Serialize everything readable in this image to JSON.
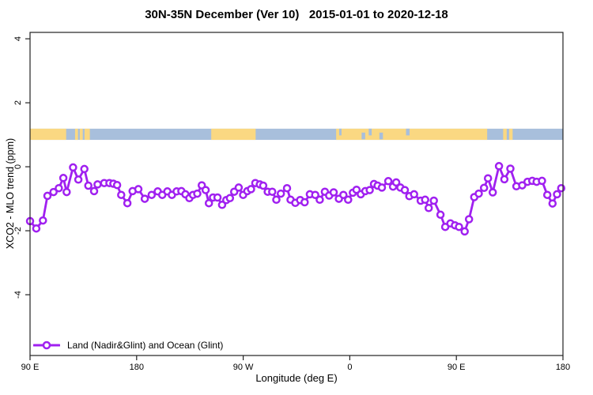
{
  "figure": {
    "title": "30N-35N December (Ver 10)   2015-01-01 to 2020-12-18",
    "x_axis_label": "Longitude (deg E)",
    "y_axis_label": "XCO2 - MLO trend (ppm)",
    "legend": {
      "label": "Land (Nadir&Glint) and Ocean (Glint)"
    }
  },
  "colors": {
    "series": "#A020F0",
    "marker_fill": "#FFFFFF",
    "land": "#FAD882",
    "ocean": "#A8BFDC",
    "axis": "#222222",
    "text": "#000000"
  },
  "chart_data": {
    "type": "line",
    "title": "30N-35N December (Ver 10)   2015-01-01 to 2020-12-18",
    "xlabel": "Longitude (deg E)",
    "ylabel": "XCO2 - MLO trend (ppm)",
    "xlim": [
      90,
      540
    ],
    "ylim": [
      -5.9,
      4.2
    ],
    "grid": false,
    "legend_position": "bottom-left-inside",
    "x_ticks": [
      {
        "value": 90,
        "label": "90 E"
      },
      {
        "value": 180,
        "label": "180"
      },
      {
        "value": 270,
        "label": "90 W"
      },
      {
        "value": 360,
        "label": "0"
      },
      {
        "value": 450,
        "label": "90 E"
      },
      {
        "value": 540,
        "label": "180"
      }
    ],
    "y_ticks": [
      {
        "value": -4,
        "label": "-4"
      },
      {
        "value": -2,
        "label": "-2"
      },
      {
        "value": 0,
        "label": "0"
      },
      {
        "value": 2,
        "label": "2"
      },
      {
        "value": 4,
        "label": "4"
      }
    ],
    "map_band": {
      "comment": "30N-35N world-map strip drawn across plot at ~+1 ppm; longitudes are continuous deg E from 90",
      "y_from": 0.84,
      "y_to": 1.19,
      "land_segments": [
        [
          90,
          120.5
        ],
        [
          128,
          130.5
        ],
        [
          132,
          134.5
        ],
        [
          136,
          140.5
        ],
        [
          243,
          280.5
        ],
        [
          348.5,
          476
        ],
        [
          489.5,
          492.5
        ],
        [
          494.5,
          497.5
        ]
      ],
      "ocean_specks": [
        [
          351,
          353
        ],
        [
          370,
          373
        ],
        [
          376,
          378.5
        ],
        [
          385,
          388
        ],
        [
          407.5,
          410.5
        ]
      ]
    },
    "series": [
      {
        "name": "Land (Nadir&Glint) and Ocean (Glint)",
        "color": "#A020F0",
        "marker": "open-circle",
        "x": [
          90,
          95.3,
          100.9,
          104.7,
          109.8,
          114.3,
          118.1,
          120.9,
          126.3,
          130.8,
          135.9,
          139.2,
          144.1,
          147,
          152.6,
          157,
          160.4,
          163.5,
          167,
          172.2,
          176.6,
          181.5,
          186.9,
          192.7,
          197.8,
          201.6,
          206,
          209.8,
          213.8,
          217.8,
          221.2,
          224.5,
          227.6,
          231.2,
          235,
          238.3,
          241,
          244.5,
          248.3,
          252.2,
          255.7,
          258.8,
          262.4,
          266.2,
          269.9,
          273.5,
          276.6,
          280.2,
          284,
          286.9,
          290.7,
          294.5,
          298,
          301.8,
          307,
          310,
          314,
          318.1,
          321.9,
          326.3,
          330.8,
          334.6,
          339,
          342.6,
          346.4,
          350.8,
          354.6,
          358.6,
          362.6,
          365.7,
          369.3,
          373.1,
          376.8,
          380.4,
          383.5,
          387.1,
          392.5,
          396.5,
          399.2,
          402.7,
          406.5,
          410.3,
          414.3,
          419.9,
          423.6,
          426.6,
          431,
          436.6,
          440.6,
          445,
          448.8,
          452.2,
          457,
          460.7,
          465.1,
          468.9,
          473.4,
          476.7,
          480.7,
          486,
          490.5,
          495.6,
          500.7,
          505.6,
          510.1,
          514.1,
          517.8,
          522.3,
          526.8,
          531.2,
          535,
          538.5
        ],
        "y": [
          -1.7,
          -1.93,
          -1.68,
          -0.91,
          -0.79,
          -0.67,
          -0.35,
          -0.79,
          -0.02,
          -0.4,
          -0.07,
          -0.59,
          -0.76,
          -0.55,
          -0.51,
          -0.51,
          -0.53,
          -0.57,
          -0.88,
          -1.14,
          -0.76,
          -0.7,
          -1.0,
          -0.88,
          -0.77,
          -0.88,
          -0.77,
          -0.88,
          -0.77,
          -0.76,
          -0.86,
          -0.98,
          -0.88,
          -0.84,
          -0.58,
          -0.73,
          -1.14,
          -0.96,
          -0.96,
          -1.19,
          -1.04,
          -0.98,
          -0.78,
          -0.65,
          -0.88,
          -0.76,
          -0.7,
          -0.51,
          -0.55,
          -0.59,
          -0.78,
          -0.78,
          -1.03,
          -0.84,
          -0.67,
          -1.03,
          -1.13,
          -1.04,
          -1.11,
          -0.86,
          -0.88,
          -1.03,
          -0.78,
          -0.9,
          -0.8,
          -1.0,
          -0.88,
          -1.03,
          -0.81,
          -0.72,
          -0.86,
          -0.76,
          -0.73,
          -0.54,
          -0.59,
          -0.65,
          -0.45,
          -0.62,
          -0.49,
          -0.65,
          -0.73,
          -0.92,
          -0.86,
          -1.06,
          -1.03,
          -1.29,
          -1.06,
          -1.5,
          -1.88,
          -1.77,
          -1.83,
          -1.88,
          -2.02,
          -1.64,
          -0.95,
          -0.84,
          -0.66,
          -0.36,
          -0.8,
          0.02,
          -0.39,
          -0.06,
          -0.61,
          -0.58,
          -0.47,
          -0.44,
          -0.47,
          -0.44,
          -0.88,
          -1.15,
          -0.86,
          -0.67
        ]
      }
    ]
  }
}
